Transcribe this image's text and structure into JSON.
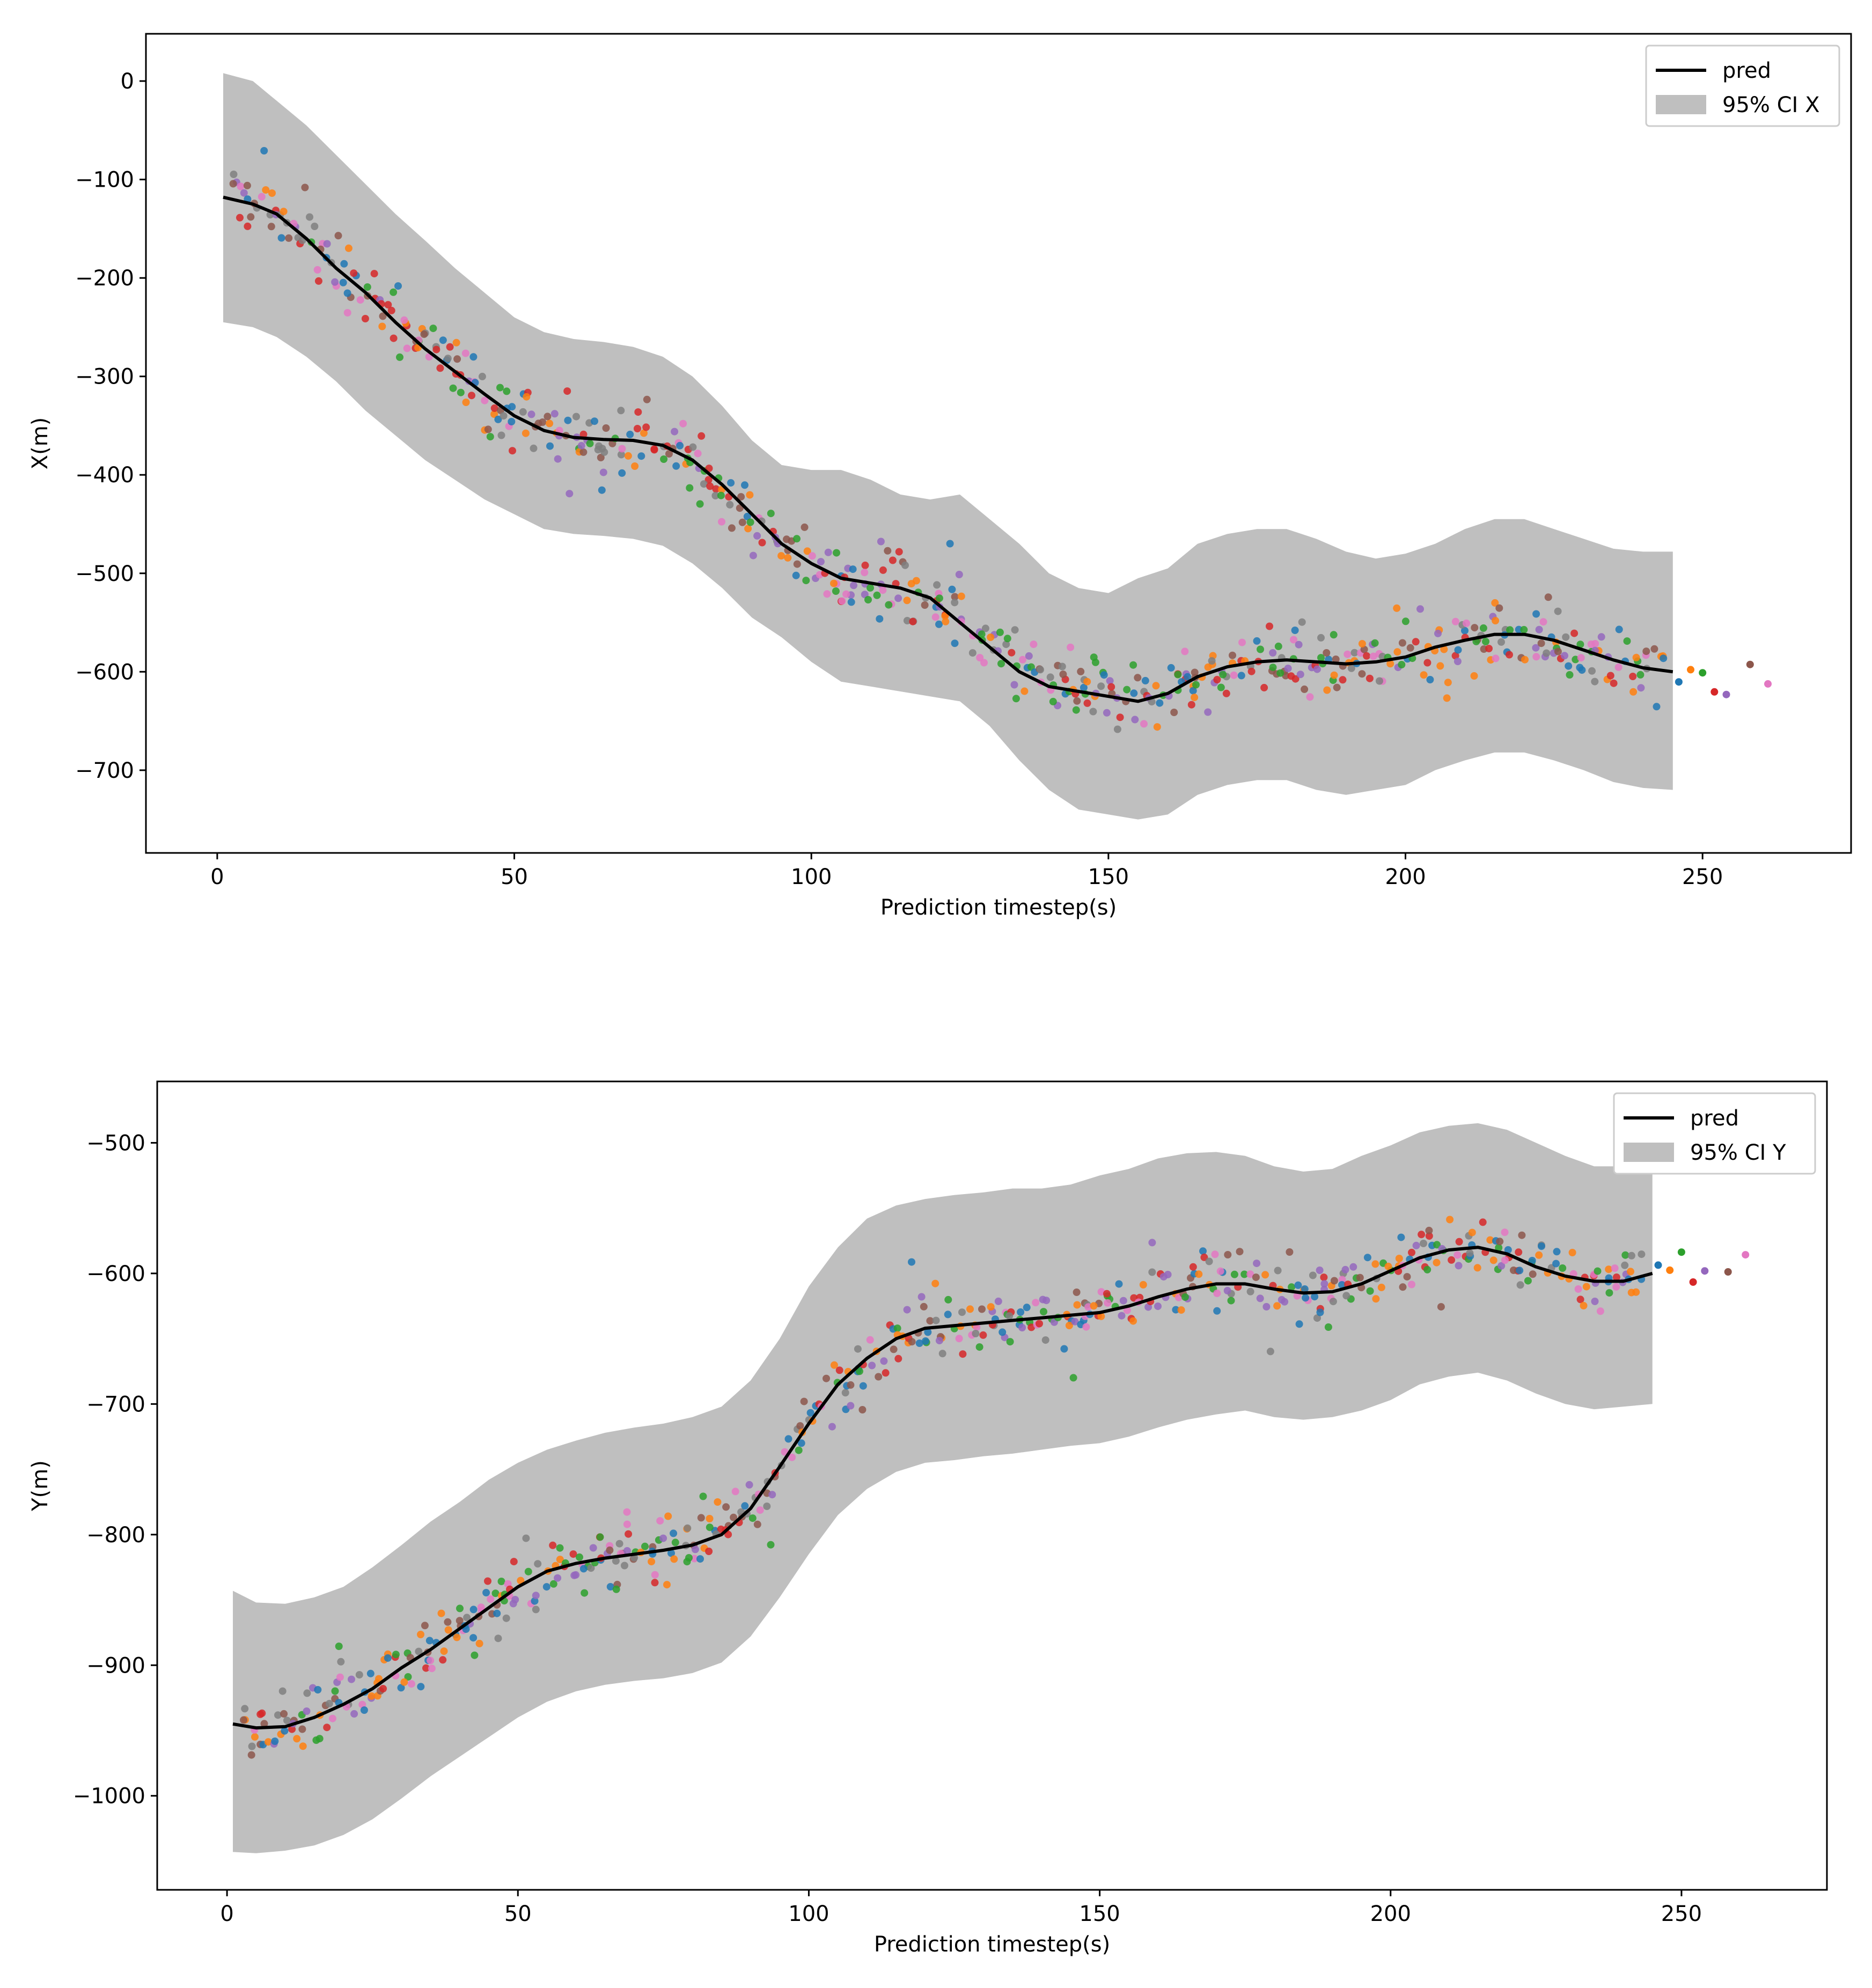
{
  "chart_data": [
    {
      "type": "line",
      "xlabel": "Prediction timestep(s)",
      "ylabel": "X(m)",
      "xlim": [
        -12,
        275
      ],
      "ylim": [
        -784,
        48
      ],
      "xticks": [
        0,
        50,
        100,
        150,
        200,
        250
      ],
      "yticks": [
        0,
        -100,
        -200,
        -300,
        -400,
        -500,
        -600,
        -700
      ],
      "xtick_labels": [
        "0",
        "50",
        "100",
        "150",
        "200",
        "250"
      ],
      "ytick_labels": [
        "0",
        "−100",
        "−200",
        "−300",
        "−400",
        "−500",
        "−600",
        "−700"
      ],
      "legend": {
        "position": "upper right",
        "entries": [
          "pred",
          "95% CI X"
        ]
      },
      "series": [
        {
          "name": "pred",
          "kind": "line",
          "color": "#000000",
          "x": [
            1,
            6,
            10,
            15,
            20,
            25,
            30,
            35,
            40,
            45,
            50,
            55,
            60,
            65,
            70,
            75,
            80,
            85,
            90,
            95,
            100,
            105,
            110,
            115,
            120,
            125,
            130,
            135,
            140,
            145,
            150,
            155,
            160,
            165,
            170,
            175,
            180,
            185,
            190,
            195,
            200,
            205,
            210,
            215,
            220,
            225,
            230,
            235,
            240,
            245
          ],
          "y": [
            -118,
            -125,
            -135,
            -160,
            -190,
            -215,
            -245,
            -272,
            -295,
            -318,
            -340,
            -355,
            -362,
            -364,
            -365,
            -370,
            -385,
            -410,
            -440,
            -470,
            -490,
            -505,
            -510,
            -515,
            -525,
            -550,
            -575,
            -600,
            -615,
            -620,
            -625,
            -630,
            -622,
            -605,
            -595,
            -590,
            -588,
            -590,
            -592,
            -590,
            -585,
            -575,
            -568,
            -562,
            -562,
            -568,
            -578,
            -588,
            -596,
            -600
          ]
        },
        {
          "name": "95% CI X",
          "kind": "band",
          "color": "#bfbfbf",
          "x": [
            1,
            6,
            10,
            15,
            20,
            25,
            30,
            35,
            40,
            45,
            50,
            55,
            60,
            65,
            70,
            75,
            80,
            85,
            90,
            95,
            100,
            105,
            110,
            115,
            120,
            125,
            130,
            135,
            140,
            145,
            150,
            155,
            160,
            165,
            170,
            175,
            180,
            185,
            190,
            195,
            200,
            205,
            210,
            215,
            220,
            225,
            230,
            235,
            240,
            245
          ],
          "upper": [
            8,
            0,
            -20,
            -45,
            -75,
            -105,
            -135,
            -162,
            -190,
            -215,
            -240,
            -255,
            -262,
            -265,
            -270,
            -280,
            -300,
            -330,
            -365,
            -390,
            -395,
            -395,
            -405,
            -420,
            -425,
            -420,
            -445,
            -470,
            -500,
            -515,
            -520,
            -505,
            -495,
            -470,
            -460,
            -455,
            -455,
            -465,
            -478,
            -485,
            -480,
            -470,
            -455,
            -445,
            -445,
            -455,
            -465,
            -475,
            -478,
            -478
          ],
          "lower": [
            -245,
            -250,
            -260,
            -280,
            -305,
            -335,
            -360,
            -385,
            -405,
            -425,
            -440,
            -455,
            -460,
            -462,
            -465,
            -472,
            -490,
            -515,
            -545,
            -565,
            -590,
            -610,
            -615,
            -620,
            -625,
            -630,
            -655,
            -690,
            -720,
            -740,
            -745,
            -750,
            -745,
            -725,
            -715,
            -710,
            -710,
            -720,
            -725,
            -720,
            -715,
            -700,
            -690,
            -682,
            -682,
            -690,
            -700,
            -712,
            -718,
            -720
          ]
        }
      ]
    },
    {
      "type": "line",
      "xlabel": "Prediction timestep(s)",
      "ylabel": "Y(m)",
      "xlim": [
        -12,
        275
      ],
      "ylim": [
        -1072,
        -453
      ],
      "xticks": [
        0,
        50,
        100,
        150,
        200,
        250
      ],
      "yticks": [
        -500,
        -600,
        -700,
        -800,
        -900,
        -1000
      ],
      "xtick_labels": [
        "0",
        "50",
        "100",
        "150",
        "200",
        "250"
      ],
      "ytick_labels": [
        "−500",
        "−600",
        "−700",
        "−800",
        "−900",
        "−1000"
      ],
      "legend": {
        "position": "upper right",
        "entries": [
          "pred",
          "95% CI Y"
        ]
      },
      "series": [
        {
          "name": "pred",
          "kind": "line",
          "color": "#000000",
          "x": [
            1,
            5,
            10,
            15,
            20,
            25,
            30,
            35,
            40,
            45,
            50,
            55,
            60,
            65,
            70,
            75,
            80,
            85,
            90,
            95,
            100,
            105,
            110,
            115,
            120,
            125,
            130,
            135,
            140,
            145,
            150,
            155,
            160,
            165,
            170,
            175,
            180,
            185,
            190,
            195,
            200,
            205,
            210,
            215,
            220,
            225,
            230,
            235,
            240,
            245
          ],
          "y": [
            -945,
            -948,
            -947,
            -940,
            -930,
            -918,
            -902,
            -888,
            -872,
            -856,
            -840,
            -828,
            -822,
            -818,
            -815,
            -812,
            -808,
            -800,
            -780,
            -748,
            -715,
            -685,
            -665,
            -650,
            -642,
            -640,
            -638,
            -636,
            -634,
            -632,
            -630,
            -625,
            -618,
            -612,
            -608,
            -608,
            -612,
            -615,
            -614,
            -608,
            -598,
            -588,
            -582,
            -580,
            -585,
            -595,
            -602,
            -606,
            -606,
            -600
          ]
        },
        {
          "name": "95% CI Y",
          "kind": "band",
          "color": "#bfbfbf",
          "x": [
            1,
            5,
            10,
            15,
            20,
            25,
            30,
            35,
            40,
            45,
            50,
            55,
            60,
            65,
            70,
            75,
            80,
            85,
            90,
            95,
            100,
            105,
            110,
            115,
            120,
            125,
            130,
            135,
            140,
            145,
            150,
            155,
            160,
            165,
            170,
            175,
            180,
            185,
            190,
            195,
            200,
            205,
            210,
            215,
            220,
            225,
            230,
            235,
            240,
            245
          ],
          "upper": [
            -843,
            -852,
            -853,
            -848,
            -840,
            -825,
            -808,
            -790,
            -775,
            -758,
            -745,
            -735,
            -728,
            -722,
            -718,
            -715,
            -710,
            -702,
            -682,
            -650,
            -610,
            -580,
            -558,
            -548,
            -543,
            -540,
            -538,
            -535,
            -535,
            -532,
            -525,
            -520,
            -512,
            -508,
            -507,
            -510,
            -518,
            -522,
            -520,
            -510,
            -502,
            -492,
            -487,
            -485,
            -490,
            -500,
            -510,
            -518,
            -518,
            -518
          ],
          "lower": [
            -1043,
            -1044,
            -1042,
            -1038,
            -1030,
            -1018,
            -1002,
            -985,
            -970,
            -955,
            -940,
            -928,
            -920,
            -915,
            -912,
            -910,
            -906,
            -898,
            -878,
            -848,
            -815,
            -785,
            -765,
            -752,
            -745,
            -743,
            -740,
            -738,
            -735,
            -732,
            -730,
            -725,
            -718,
            -712,
            -708,
            -705,
            -710,
            -712,
            -710,
            -705,
            -697,
            -685,
            -679,
            -676,
            -682,
            -692,
            -700,
            -704,
            -702,
            -700
          ]
        }
      ]
    }
  ],
  "scatter_palette": [
    "#1f77b4",
    "#ff7f0e",
    "#2ca02c",
    "#d62728",
    "#9467bd",
    "#8c564b",
    "#e377c2",
    "#7f7f7f",
    "#bcbd22",
    "#17becf"
  ]
}
